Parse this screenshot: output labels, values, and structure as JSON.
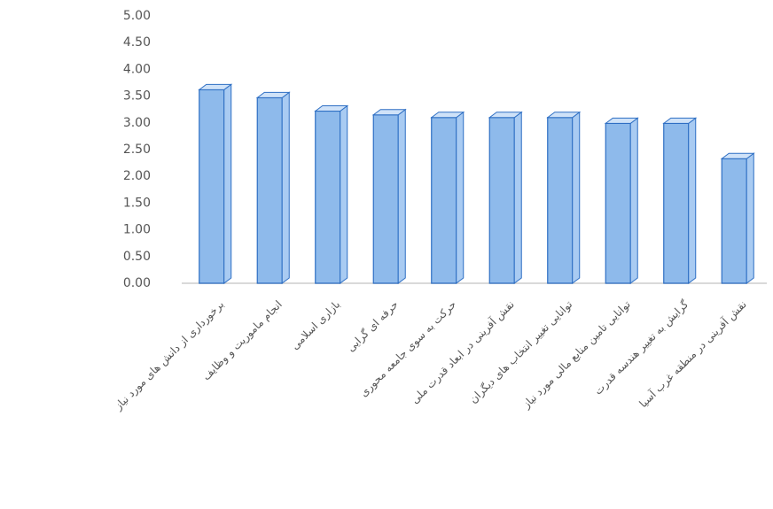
{
  "chart_data": {
    "type": "bar3d",
    "categories": [
      "برخورداری از دانش های مورد نیاز",
      "انجام ماموریت و وظایف",
      "بازاری اسلامی",
      "حرفه ای گرایی",
      "حرکت به سوی جامعه محوری",
      "نقش آفرینی در ابعاد قدرت ملی",
      "توانایی تغییر انتخاب های دیگران",
      "توانایی تامین منابع مالی مورد نیاز",
      "گرایش به تغییر هندسه قدرت",
      "نقش آفرینی در منطقه غرب آسیا"
    ],
    "values": [
      3.62,
      3.47,
      3.22,
      3.15,
      3.1,
      3.1,
      3.1,
      2.99,
      2.99,
      2.33
    ],
    "color": "#7aaee8",
    "ylim": [
      0,
      5
    ],
    "yticks": [
      {
        "value": 0,
        "label": "0.00"
      },
      {
        "value": 0.5,
        "label": "0.50"
      },
      {
        "value": 1,
        "label": "1.00"
      },
      {
        "value": 1.5,
        "label": "1.50"
      },
      {
        "value": 2,
        "label": "2.00"
      },
      {
        "value": 2.5,
        "label": "2.50"
      },
      {
        "value": 3,
        "label": "3.00"
      },
      {
        "value": 3.5,
        "label": "3.50"
      },
      {
        "value": 4,
        "label": "4.00"
      },
      {
        "value": 4.5,
        "label": "4.50"
      },
      {
        "value": 5,
        "label": "5.00"
      }
    ]
  }
}
